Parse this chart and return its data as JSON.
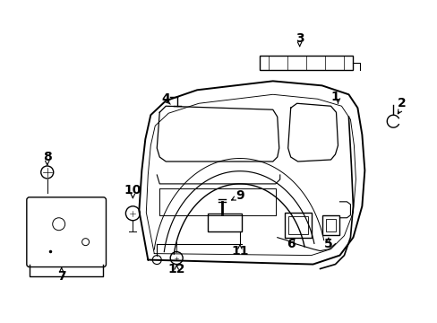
{
  "bg_color": "#ffffff",
  "line_color": "#000000",
  "figsize": [
    4.89,
    3.6
  ],
  "dpi": 100,
  "font_size": 10,
  "line_width": 1.0
}
